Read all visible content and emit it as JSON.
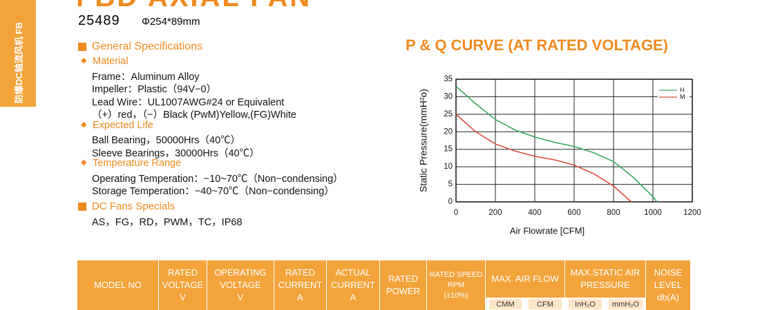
{
  "sidebar": "防爆DC轴流风机 FB",
  "header": {
    "title": "FBD AXIAL FAN",
    "model": "25489",
    "size": "Φ254*89mm"
  },
  "specs": {
    "heading": "General Specifications",
    "sections": [
      {
        "title": "Material",
        "lines": [
          "Frame：Aluminum Alloy",
          "Impeller：Plastic（94V−0）",
          "Lead Wire：UL1007AWG#24 or Equivalent",
          "（+）red，（−）Black (PwM)Yellow,(FG)White"
        ]
      },
      {
        "title": "Expected Life",
        "lines": [
          "Ball Bearing，50000Hrs（40℃）",
          "Sleeve Bearings，30000Hrs（40℃）"
        ]
      },
      {
        "title": "Temperature Range",
        "lines": [
          "Operating Temperation：−10~70℃（Non−condensing）",
          "Storage Temperation：−40~70℃（Non−condensing）"
        ]
      }
    ]
  },
  "dc_fans": {
    "heading": "DC Fans Specials",
    "line": "AS，FG，RD，PWM，TC，IP68"
  },
  "chart_data": {
    "type": "line",
    "title": "P & Q CURVE (AT RATED VOLTAGE)",
    "x_label": "Air Flowrate  [CFM]",
    "y_label": "Static Pressure(mmH²o)",
    "xlim": [
      0,
      1200
    ],
    "xticks": [
      0,
      200,
      400,
      600,
      800,
      1000,
      1200
    ],
    "ylim": [
      0,
      35
    ],
    "yticks": [
      0,
      5,
      10,
      15,
      20,
      25,
      30,
      35
    ],
    "grid": true,
    "legend": "top-right",
    "series": [
      {
        "name": "H",
        "color": "#3aa860",
        "x": [
          0,
          100,
          200,
          300,
          400,
          500,
          600,
          700,
          800,
          900,
          1000,
          1020
        ],
        "values": [
          33,
          28,
          23.5,
          20.5,
          18.5,
          17,
          15.8,
          14,
          11.5,
          7,
          1.5,
          0
        ]
      },
      {
        "name": "M",
        "color": "#e0483a",
        "x": [
          0,
          100,
          200,
          300,
          400,
          500,
          600,
          700,
          800,
          850,
          890
        ],
        "values": [
          25,
          20,
          16.5,
          14.5,
          13,
          12,
          10.5,
          8,
          4.5,
          2,
          0
        ]
      }
    ]
  },
  "table": {
    "headers": [
      [
        "MODEL NO"
      ],
      [
        "RATED",
        "VOLTAGE",
        "V"
      ],
      [
        "OPERATING",
        "VOLTAGE",
        "V"
      ],
      [
        "RATED",
        "CURRENT",
        "A"
      ],
      [
        "ACTUAL",
        "CURRENT",
        "A"
      ],
      [
        "RATED",
        "POWER"
      ],
      [
        "RATED SPEED",
        "RPM",
        "(±10%)"
      ],
      [
        "MAX. AIR FLOW"
      ],
      [
        "MAX.STATIC AIR",
        "PRESSURE"
      ],
      [
        "NOISE",
        "LEVEL",
        "db(A)"
      ]
    ],
    "subheaders": [
      "CMM",
      "CFM",
      "InH₂O",
      "mmH₂O"
    ]
  }
}
